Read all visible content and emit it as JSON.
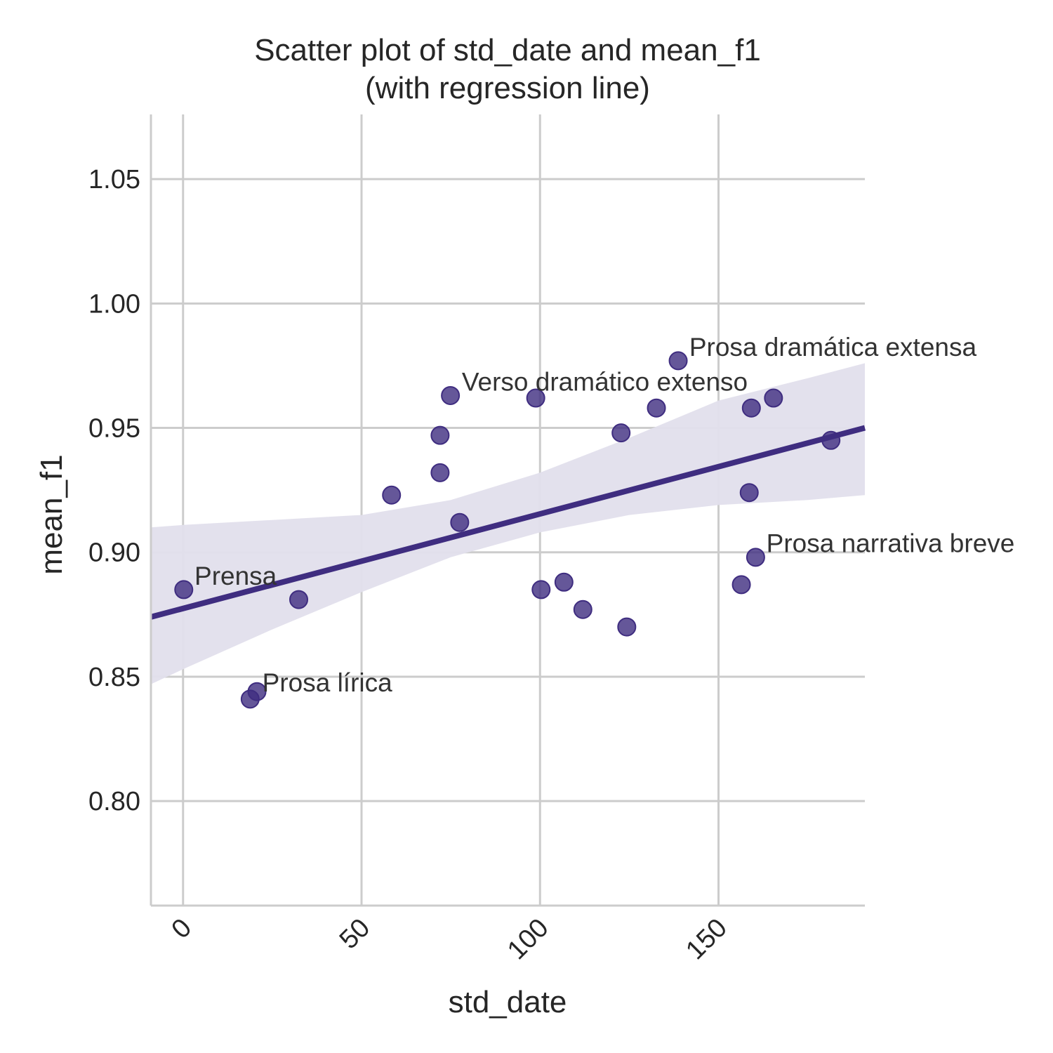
{
  "chart_data": {
    "type": "scatter",
    "title": [
      "Scatter plot of std_date and mean_f1",
      "(with regression line)"
    ],
    "xlabel": "std_date",
    "ylabel": "mean_f1",
    "xlim": [
      -9,
      191
    ],
    "ylim": [
      0.758,
      1.076
    ],
    "xticks": [
      0,
      50,
      100,
      150
    ],
    "xtick_labels": [
      "0",
      "50",
      "100",
      "150"
    ],
    "yticks": [
      0.8,
      0.85,
      0.9,
      0.95,
      1.0,
      1.05
    ],
    "ytick_labels": [
      "0.80",
      "0.85",
      "0.90",
      "0.95",
      "1.00",
      "1.05"
    ],
    "grid": true,
    "color": "#3f2d80",
    "band_color": "#e2dfec",
    "points": [
      {
        "x": 0.2,
        "y": 0.885
      },
      {
        "x": 18.8,
        "y": 0.841
      },
      {
        "x": 20.7,
        "y": 0.844
      },
      {
        "x": 32.4,
        "y": 0.881
      },
      {
        "x": 58.4,
        "y": 0.923
      },
      {
        "x": 72.0,
        "y": 0.947
      },
      {
        "x": 72.0,
        "y": 0.932
      },
      {
        "x": 74.9,
        "y": 0.963
      },
      {
        "x": 77.5,
        "y": 0.912
      },
      {
        "x": 98.8,
        "y": 0.962
      },
      {
        "x": 100.3,
        "y": 0.885
      },
      {
        "x": 106.7,
        "y": 0.888
      },
      {
        "x": 112.0,
        "y": 0.877
      },
      {
        "x": 122.7,
        "y": 0.948
      },
      {
        "x": 124.3,
        "y": 0.87
      },
      {
        "x": 132.6,
        "y": 0.958
      },
      {
        "x": 138.7,
        "y": 0.977
      },
      {
        "x": 156.4,
        "y": 0.887
      },
      {
        "x": 158.6,
        "y": 0.924
      },
      {
        "x": 159.2,
        "y": 0.958
      },
      {
        "x": 160.4,
        "y": 0.898
      },
      {
        "x": 165.4,
        "y": 0.962
      },
      {
        "x": 181.5,
        "y": 0.945
      }
    ],
    "regression": {
      "x": [
        -9,
        191
      ],
      "y": [
        0.874,
        0.95
      ]
    },
    "band": {
      "x": [
        -9,
        0,
        25,
        50,
        75,
        100,
        125,
        150,
        175,
        191
      ],
      "lower": [
        0.847,
        0.853,
        0.869,
        0.884,
        0.898,
        0.908,
        0.915,
        0.919,
        0.921,
        0.923
      ],
      "upper": [
        0.91,
        0.911,
        0.913,
        0.915,
        0.921,
        0.932,
        0.946,
        0.961,
        0.97,
        0.976
      ]
    },
    "annotations": [
      {
        "text": "Prensa",
        "x": 3.2,
        "y": 0.887
      },
      {
        "text": "Prosa lírica",
        "x": 22.2,
        "y": 0.844
      },
      {
        "text": "Verso dramático extenso",
        "x": 78.1,
        "y": 0.965
      },
      {
        "text": "Prosa dramática extensa",
        "x": 141.8,
        "y": 0.979
      },
      {
        "text": "Prosa narrativa breve",
        "x": 163.4,
        "y": 0.9
      }
    ]
  }
}
